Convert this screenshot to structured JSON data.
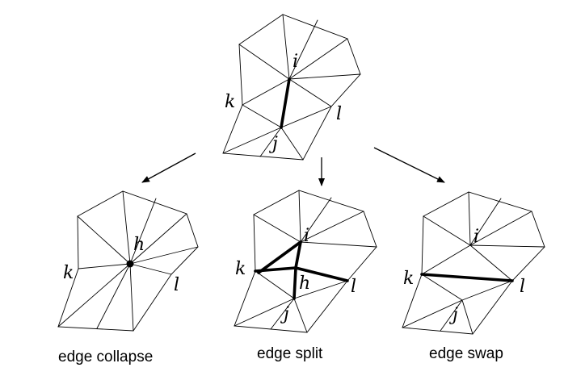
{
  "vertex_labels": {
    "i": "i",
    "j": "j",
    "k": "k",
    "l": "l",
    "h": "h"
  },
  "captions": {
    "collapse": "edge collapse",
    "split": "edge split",
    "swap": "edge swap"
  }
}
